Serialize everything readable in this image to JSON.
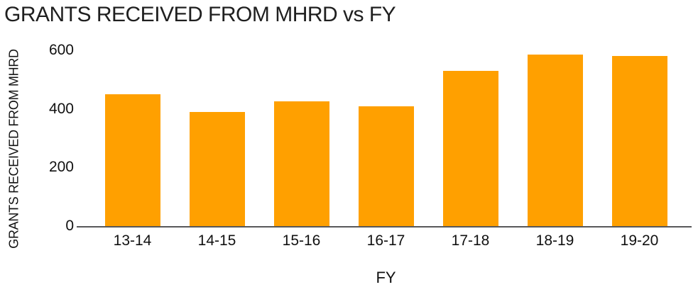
{
  "title": "GRANTS RECEIVED FROM MHRD vs FY",
  "colors": {
    "bar": "#FFA000",
    "axis_line": "#58585A",
    "text": "#111111",
    "background": "#FFFFFF"
  },
  "chart_data": {
    "type": "bar",
    "title": "GRANTS RECEIVED FROM MHRD vs FY",
    "xlabel": "FY",
    "ylabel": "GRANTS RECEIVED FROM MHRD",
    "categories": [
      "13-14",
      "14-15",
      "15-16",
      "16-17",
      "17-18",
      "18-19",
      "19-20"
    ],
    "values": [
      450,
      390,
      425,
      410,
      530,
      585,
      580
    ],
    "ylim": [
      0,
      600
    ],
    "yticks": [
      0,
      200,
      400,
      600
    ],
    "grid": false,
    "legend": false,
    "bar_color": "#FFA000"
  }
}
